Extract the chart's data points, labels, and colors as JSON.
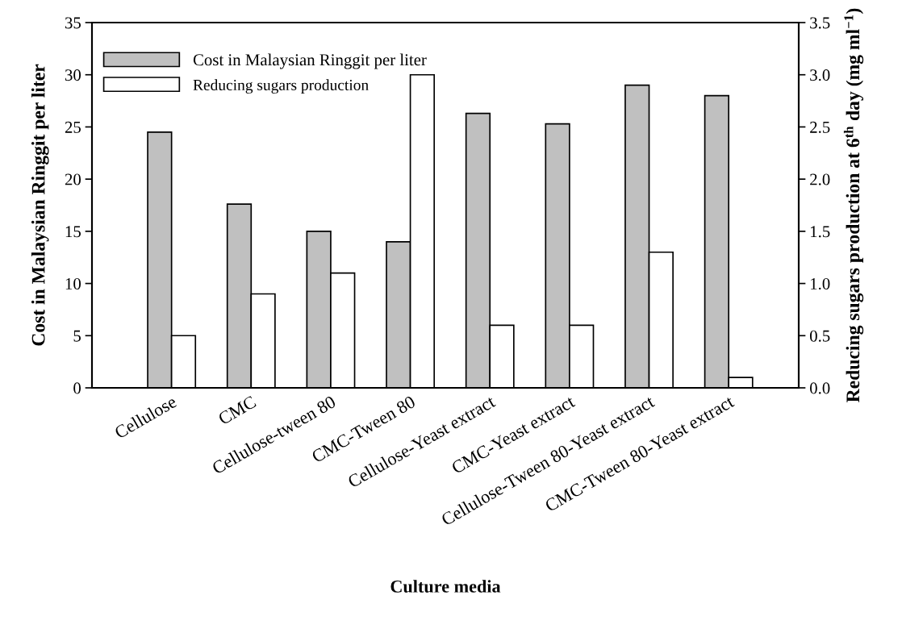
{
  "chart_data": {
    "type": "bar",
    "categories": [
      "Cellulose",
      "CMC",
      "Cellulose-tween 80",
      "CMC-Tween 80",
      "Cellulose-Yeast extract",
      "CMC-Yeast extract",
      "Cellulose-Tween 80-Yeast extract",
      "CMC-Tween 80-Yeast extract"
    ],
    "series": [
      {
        "name": "Cost in Malaysian Ringgit per liter",
        "color": "#c0c0c0",
        "values": [
          24.5,
          17.6,
          15,
          14,
          26.3,
          25.3,
          29,
          28
        ]
      },
      {
        "name": "Reducing sugars production",
        "color": "#ffffff",
        "axis": "y2",
        "values": [
          0.5,
          0.9,
          1.1,
          3.0,
          0.6,
          0.6,
          1.3,
          0.1
        ]
      }
    ],
    "xlabel": "Culture media",
    "ylabel": "Cost in Malaysian Ringgit per liter",
    "y2label": "Reducing sugars production at 6$^{th}$ day (mg ml$^{−1}$)",
    "ylim": [
      0,
      35
    ],
    "yticks": [
      0,
      5,
      10,
      15,
      20,
      25,
      30,
      35
    ],
    "y2lim": [
      0,
      3.5
    ],
    "y2ticks": [
      {
        "value": 0,
        "label": "0.0"
      },
      0.5,
      {
        "value": 1,
        "label": "1.0"
      },
      1.5,
      {
        "value": 2,
        "label": "2.0"
      },
      2.5,
      {
        "value": 3,
        "label": "3.0"
      },
      3.5
    ],
    "legend": "top left",
    "grid": false
  }
}
